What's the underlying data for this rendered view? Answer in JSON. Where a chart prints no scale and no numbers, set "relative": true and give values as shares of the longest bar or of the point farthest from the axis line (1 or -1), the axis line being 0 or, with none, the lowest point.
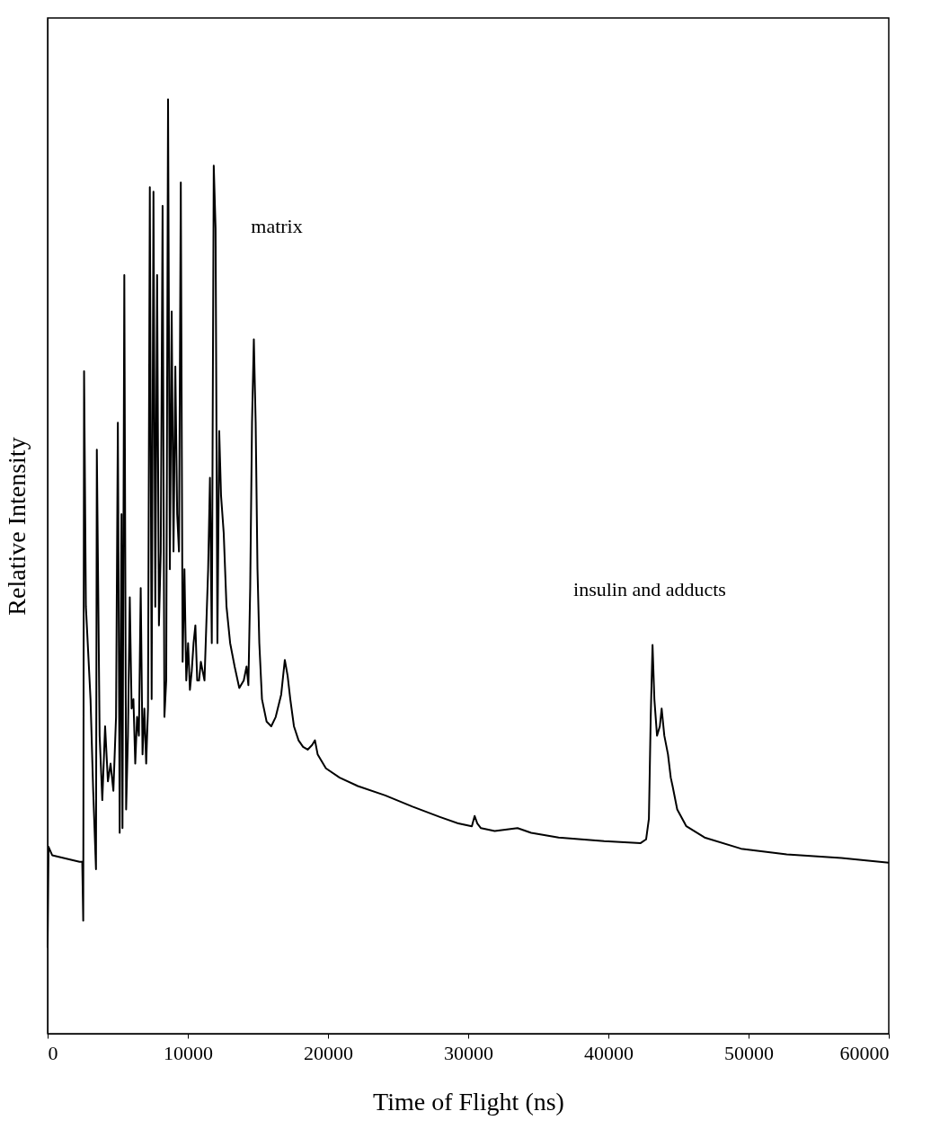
{
  "chart_data": {
    "type": "line",
    "relative": true,
    "xlabel": "Time of Flight (ns)",
    "ylabel": "Relative Intensity",
    "xlim": [
      0,
      60000
    ],
    "xticks": [
      0,
      10000,
      20000,
      30000,
      40000,
      50000,
      60000
    ],
    "grid": false,
    "marker": "none",
    "line_style": "solid",
    "annotations": [
      "matrix",
      "insulin and adducts"
    ],
    "series": [
      {
        "color": "#000000",
        "x": [
          0,
          65,
          325,
          2280,
          2470,
          2540,
          2600,
          2730,
          3060,
          3250,
          3450,
          3510,
          3710,
          3900,
          4100,
          4300,
          4490,
          4690,
          4880,
          5010,
          5140,
          5270,
          5340,
          5470,
          5600,
          5730,
          5860,
          5990,
          6120,
          6250,
          6380,
          6510,
          6640,
          6770,
          6900,
          7030,
          7160,
          7290,
          7420,
          7550,
          7680,
          7810,
          7940,
          8070,
          8200,
          8330,
          8460,
          8590,
          8720,
          8850,
          8980,
          9110,
          9240,
          9370,
          9500,
          9630,
          9760,
          9890,
          10020,
          10150,
          10280,
          10410,
          10540,
          10670,
          10800,
          10930,
          11060,
          11190,
          11450,
          11580,
          11710,
          11850,
          11980,
          12110,
          12240,
          12370,
          12560,
          12760,
          13020,
          13340,
          13670,
          13990,
          14190,
          14320,
          14450,
          14580,
          14710,
          14840,
          14970,
          15100,
          15290,
          15620,
          15950,
          16270,
          16660,
          16920,
          17120,
          17310,
          17570,
          17900,
          18220,
          18550,
          18870,
          19070,
          19260,
          19850,
          20830,
          22130,
          24080,
          26030,
          27980,
          29290,
          30260,
          30460,
          30650,
          30910,
          31890,
          33520,
          34490,
          36450,
          39700,
          42300,
          42690,
          42890,
          43020,
          43150,
          43280,
          43470,
          43670,
          43800,
          43990,
          44250,
          44450,
          44580,
          44910,
          45560,
          46860,
          49460,
          52720,
          56620,
          60000
        ],
        "values": [
          0.092,
          0.2,
          0.191,
          0.184,
          0.184,
          0.121,
          0.709,
          0.457,
          0.358,
          0.26,
          0.176,
          0.625,
          0.319,
          0.25,
          0.329,
          0.27,
          0.289,
          0.26,
          0.339,
          0.654,
          0.215,
          0.556,
          0.22,
          0.812,
          0.24,
          0.319,
          0.467,
          0.348,
          0.358,
          0.289,
          0.339,
          0.319,
          0.477,
          0.299,
          0.348,
          0.289,
          0.348,
          0.906,
          0.358,
          0.901,
          0.457,
          0.812,
          0.437,
          0.516,
          0.886,
          0.339,
          0.378,
          1.0,
          0.497,
          0.773,
          0.516,
          0.714,
          0.556,
          0.516,
          0.911,
          0.398,
          0.497,
          0.378,
          0.418,
          0.368,
          0.388,
          0.418,
          0.437,
          0.378,
          0.378,
          0.398,
          0.388,
          0.378,
          0.497,
          0.595,
          0.418,
          0.929,
          0.862,
          0.418,
          0.645,
          0.576,
          0.536,
          0.457,
          0.418,
          0.393,
          0.37,
          0.378,
          0.393,
          0.373,
          0.477,
          0.654,
          0.743,
          0.654,
          0.497,
          0.418,
          0.358,
          0.334,
          0.329,
          0.339,
          0.363,
          0.4,
          0.383,
          0.358,
          0.329,
          0.314,
          0.307,
          0.304,
          0.309,
          0.314,
          0.299,
          0.284,
          0.274,
          0.265,
          0.255,
          0.243,
          0.232,
          0.225,
          0.222,
          0.233,
          0.225,
          0.22,
          0.217,
          0.22,
          0.215,
          0.21,
          0.206,
          0.204,
          0.208,
          0.23,
          0.339,
          0.416,
          0.358,
          0.319,
          0.329,
          0.348,
          0.319,
          0.299,
          0.274,
          0.265,
          0.24,
          0.222,
          0.21,
          0.198,
          0.192,
          0.188,
          0.183
        ]
      }
    ]
  }
}
